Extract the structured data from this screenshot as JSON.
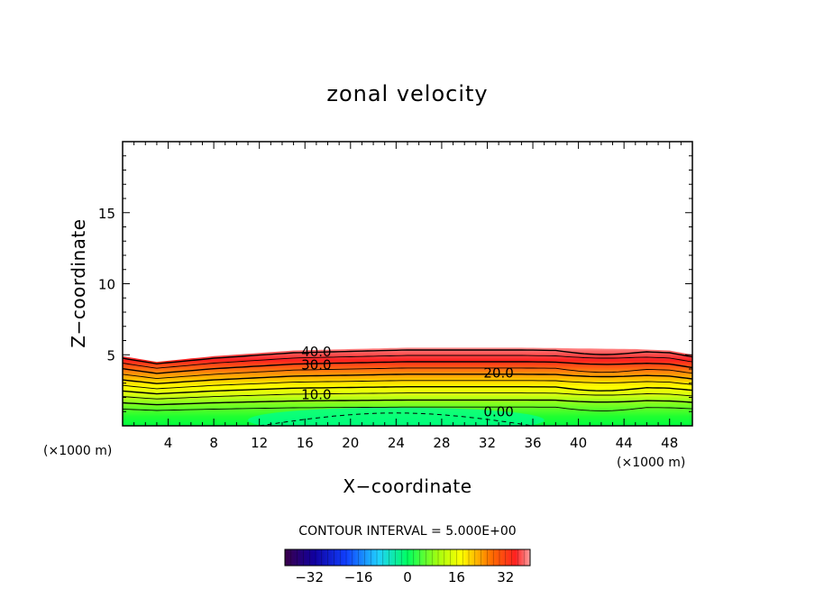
{
  "chart_data": {
    "type": "heatmap",
    "title": "zonal velocity",
    "xlabel": "X−coordinate",
    "ylabel": "Z−coordinate",
    "x_units_left": "(×1000 m)",
    "x_units_right": "(×1000 m)",
    "xlim": [
      0,
      50
    ],
    "ylim": [
      0,
      20
    ],
    "x_ticks": [
      4,
      8,
      12,
      16,
      20,
      24,
      28,
      32,
      36,
      40,
      44,
      48
    ],
    "y_ticks": [
      5,
      10,
      15
    ],
    "contour_interval_text": "CONTOUR INTERVAL = 5.000E+00",
    "contour_labels": [
      {
        "text": "40.0",
        "x": 17.0,
        "z": 5.2
      },
      {
        "text": "30.0",
        "x": 17.0,
        "z": 4.3
      },
      {
        "text": "20.0",
        "x": 33.0,
        "z": 3.7
      },
      {
        "text": "10.0",
        "x": 17.0,
        "z": 2.2
      },
      {
        "text": "0.00",
        "x": 33.0,
        "z": 1.0
      }
    ],
    "colorbar": {
      "range": [
        -40,
        40
      ],
      "ticks": [
        "−32",
        "−16",
        "0",
        "16",
        "32"
      ]
    },
    "field_top_x": [
      0,
      3,
      8,
      15,
      25,
      35,
      45,
      48,
      50
    ],
    "field_top_z": [
      4.9,
      4.5,
      4.9,
      5.3,
      5.5,
      5.5,
      5.4,
      5.3,
      5.0
    ],
    "grid": false
  },
  "colors": {
    "low": "#00ff60",
    "mid": "#ffff00",
    "high": "#ff2020"
  }
}
